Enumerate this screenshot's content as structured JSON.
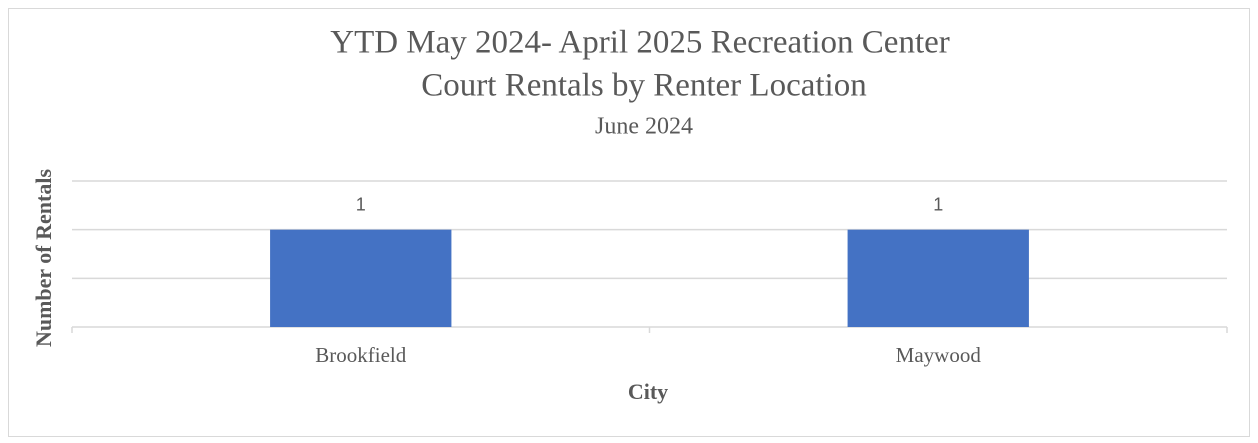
{
  "chart_data": {
    "type": "bar",
    "title": [
      "YTD May 2024- April 2025 Recreation Center",
      "Court Rentals by Renter Location"
    ],
    "subtitle": "June 2024",
    "x_label": "City",
    "y_label": "Number of Rentals",
    "categories": [
      "Brookfield",
      "Maywood"
    ],
    "values": [
      1,
      1
    ],
    "color": "#4472c4",
    "ylim": [
      0,
      1.5
    ],
    "yticks": [
      0,
      0.5,
      1,
      1.5
    ],
    "grid": true
  }
}
